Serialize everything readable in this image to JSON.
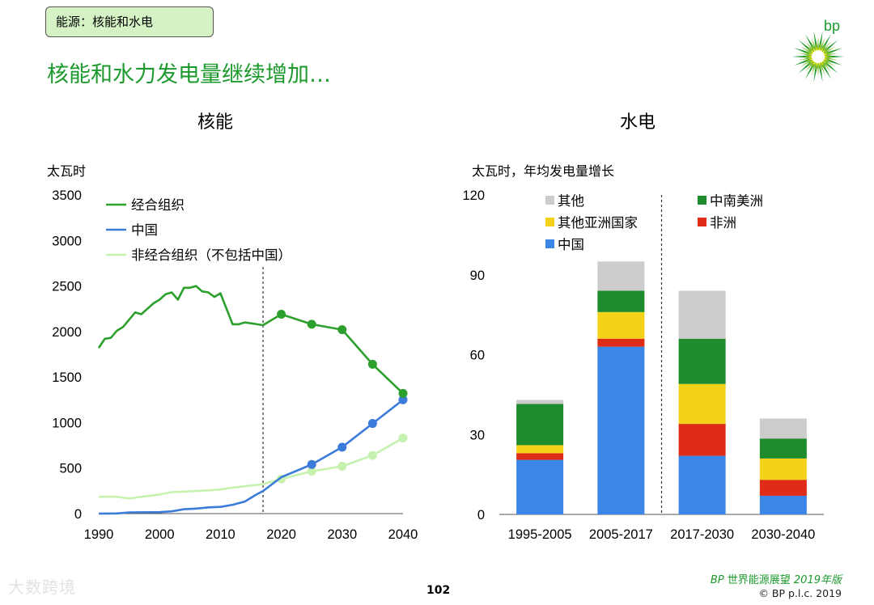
{
  "header": {
    "tag": "能源：核能和水电",
    "headline": "核能和水力发电量继续增加…",
    "logo_text": "bp"
  },
  "footer": {
    "page_number": "102",
    "brand_prefix": "BP",
    "brand_title": " 世界能源展望 ",
    "brand_year": "2019年版",
    "copyright": "© BP p.l.c. 2019",
    "watermark": "大数跨境"
  },
  "colors": {
    "brand_green": "#1d9a2e",
    "oecd": "#2ca02c",
    "china_line": "#3b7bd9",
    "non_oecd": "#c6f2b0",
    "bar_other": "#cccccc",
    "bar_csam": "#1e8c2c",
    "bar_other_asia": "#f5d21a",
    "bar_africa": "#e02b16",
    "bar_china": "#3c86e8"
  },
  "chart_data": [
    {
      "type": "line",
      "title": "核能",
      "ylabel": "太瓦时",
      "ylim": [
        0,
        3500
      ],
      "yticks": [
        0,
        500,
        1000,
        1500,
        2000,
        2500,
        3000,
        3500
      ],
      "xlim": [
        1990,
        2040
      ],
      "xticks": [
        1990,
        2000,
        2010,
        2020,
        2030,
        2040
      ],
      "divider_x": 2017,
      "series": [
        {
          "name": "经合组织",
          "color": "#2ca02c",
          "x": [
            1990,
            1991,
            1992,
            1993,
            1994,
            1995,
            1996,
            1997,
            1998,
            1999,
            2000,
            2001,
            2002,
            2003,
            2004,
            2005,
            2006,
            2007,
            2008,
            2009,
            2010,
            2011,
            2012,
            2013,
            2014,
            2015,
            2016,
            2017,
            2020,
            2025,
            2030,
            2035,
            2040
          ],
          "y": [
            1820,
            1920,
            1930,
            2010,
            2050,
            2130,
            2210,
            2190,
            2250,
            2310,
            2350,
            2410,
            2430,
            2350,
            2480,
            2480,
            2500,
            2440,
            2430,
            2380,
            2420,
            2250,
            2080,
            2080,
            2100,
            2090,
            2080,
            2070,
            2190,
            2080,
            2020,
            1640,
            1320
          ],
          "markers_from": 2020
        },
        {
          "name": "中国",
          "color": "#3b7bd9",
          "x": [
            1990,
            1993,
            1995,
            2000,
            2002,
            2004,
            2006,
            2008,
            2010,
            2012,
            2014,
            2016,
            2017,
            2020,
            2025,
            2030,
            2035,
            2040
          ],
          "y": [
            0,
            2,
            13,
            16,
            25,
            48,
            55,
            68,
            74,
            97,
            132,
            213,
            248,
            400,
            540,
            730,
            990,
            1250
          ],
          "markers_from": 2025
        },
        {
          "name": "非经合组织（不包括中国）",
          "color": "#c6f2b0",
          "x": [
            1990,
            1993,
            1995,
            1997,
            2000,
            2002,
            2005,
            2008,
            2010,
            2012,
            2014,
            2016,
            2017,
            2020,
            2025,
            2030,
            2035,
            2040
          ],
          "y": [
            185,
            185,
            165,
            185,
            210,
            235,
            245,
            255,
            265,
            285,
            300,
            315,
            325,
            380,
            465,
            520,
            640,
            830
          ],
          "markers_from": 2020
        }
      ]
    },
    {
      "type": "bar",
      "stacked": true,
      "title": "水电",
      "ylabel": "太瓦时，年均发电量增长",
      "ylim": [
        0,
        120
      ],
      "yticks": [
        0,
        30,
        60,
        90,
        120
      ],
      "categories": [
        "1995-2005",
        "2005-2017",
        "2017-2030",
        "2030-2040"
      ],
      "divider_after_category": 1,
      "series": [
        {
          "name": "中国",
          "color": "#3c86e8",
          "values": [
            20.5,
            63,
            22,
            7
          ]
        },
        {
          "name": "非洲",
          "color": "#e02b16",
          "values": [
            2.5,
            3,
            12,
            6
          ]
        },
        {
          "name": "其他亚洲国家",
          "color": "#f5d21a",
          "values": [
            3,
            10,
            15,
            8
          ]
        },
        {
          "name": "中南美洲",
          "color": "#1e8c2c",
          "values": [
            15.5,
            8,
            17,
            7.5
          ]
        },
        {
          "name": "其他",
          "color": "#cccccc",
          "values": [
            1.5,
            11,
            18,
            7.5
          ]
        }
      ],
      "legend_order": [
        "其他",
        "中南美洲",
        "其他亚洲国家",
        "非洲",
        "中国"
      ]
    }
  ]
}
